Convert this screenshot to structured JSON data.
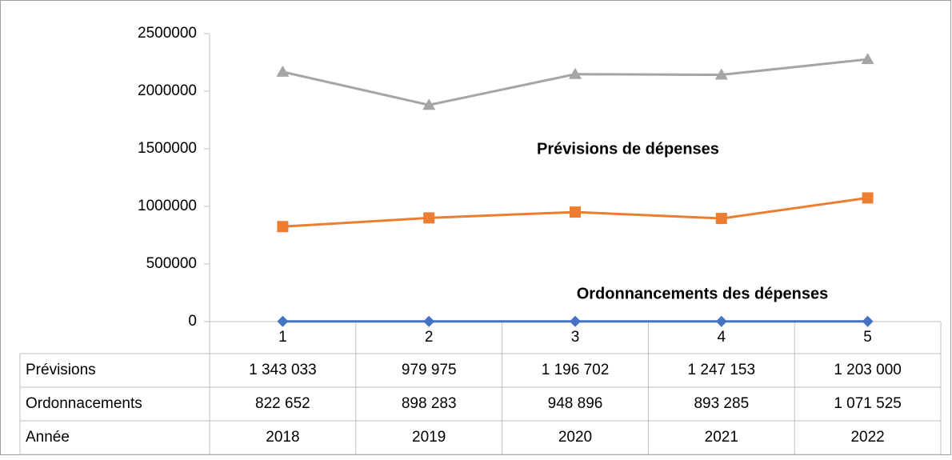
{
  "chart_data": {
    "type": "line",
    "stacked": true,
    "categories": [
      "1",
      "2",
      "3",
      "4",
      "5"
    ],
    "series": [
      {
        "name": "Prévisions",
        "color": "#a5a5a5",
        "marker": "triangle",
        "values": [
          1343033,
          979975,
          1196702,
          1247153,
          1203000
        ],
        "value_labels": [
          "1 343 033",
          "979 975",
          "1 196 702",
          "1 247 153",
          "1 203 000"
        ]
      },
      {
        "name": "Ordonnacements",
        "color": "#ed7d31",
        "marker": "square",
        "values": [
          822652,
          898283,
          948896,
          893285,
          1071525
        ],
        "value_labels": [
          "822 652",
          "898 283",
          "948 896",
          "893 285",
          "1 071 525"
        ]
      },
      {
        "name": "Année",
        "color": "#4472c4",
        "marker": "diamond",
        "values": [
          2018,
          2019,
          2020,
          2021,
          2022
        ]
      }
    ],
    "ylim": [
      0,
      2500000
    ],
    "yticks": [
      0,
      500000,
      1000000,
      1500000,
      2000000,
      2500000
    ],
    "annotations": [
      "Prévisions de dépenses",
      "Ordonnancements des dépenses"
    ]
  }
}
